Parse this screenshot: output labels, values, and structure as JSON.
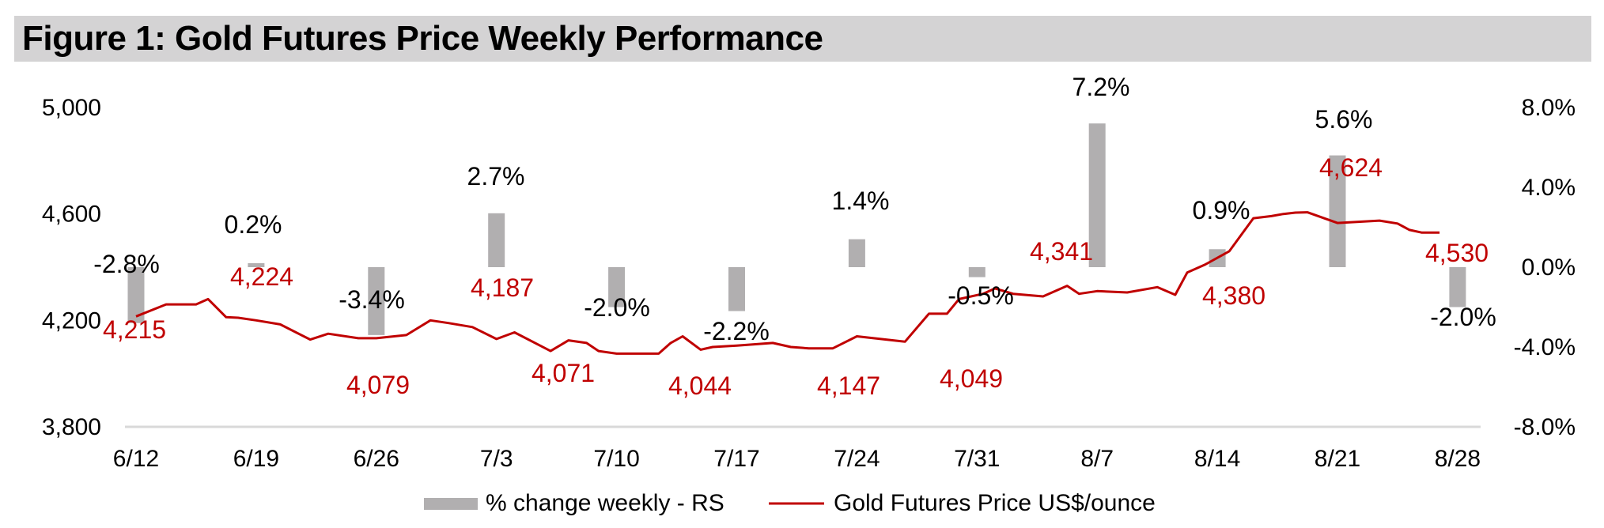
{
  "title": "Figure 1: Gold Futures Price Weekly Performance",
  "colors": {
    "bar": "#b1afb0",
    "line": "#c00000",
    "title_bg": "#d4d3d4"
  },
  "chart_data": {
    "type": "bar+line",
    "categories": [
      "6/12",
      "6/19",
      "6/26",
      "7/3",
      "7/10",
      "7/17",
      "7/24",
      "7/31",
      "8/7",
      "8/14",
      "8/21",
      "8/28"
    ],
    "left_axis": {
      "ylim": [
        3800,
        5000
      ],
      "ticks": [
        "3,800",
        "4,200",
        "4,600",
        "5,000"
      ],
      "tick_values": [
        3800,
        4200,
        4600,
        5000
      ]
    },
    "right_axis": {
      "ylim": [
        -8.0,
        8.0
      ],
      "ticks": [
        "-8.0%",
        "-4.0%",
        "0.0%",
        "4.0%",
        "8.0%"
      ],
      "tick_values": [
        -8,
        -4,
        0,
        4,
        8
      ]
    },
    "series": [
      {
        "name": "% change weekly - RS",
        "type": "bar",
        "axis": "right",
        "values": [
          -2.8,
          0.2,
          -3.4,
          2.7,
          -2.0,
          -2.2,
          1.4,
          -0.5,
          7.2,
          0.9,
          5.6,
          -2.0
        ],
        "labels": [
          "-2.8%",
          "0.2%",
          "-3.4%",
          "2.7%",
          "-2.0%",
          "-2.2%",
          "1.4%",
          "-0.5%",
          "7.2%",
          "0.9%",
          "5.6%",
          "-2.0%"
        ]
      },
      {
        "name": "Gold Futures Price US$/ounce",
        "type": "line",
        "axis": "left",
        "x": [
          0,
          0.25,
          0.5,
          0.6,
          0.75,
          0.85,
          1.0,
          1.2,
          1.45,
          1.6,
          1.85,
          2.0,
          2.25,
          2.45,
          2.6,
          2.8,
          3.0,
          3.15,
          3.45,
          3.6,
          3.75,
          3.85,
          4.0,
          4.2,
          4.35,
          4.45,
          4.55,
          4.7,
          4.8,
          5.0,
          5.3,
          5.45,
          5.6,
          5.8,
          6.0,
          6.2,
          6.4,
          6.6,
          6.75,
          6.85,
          7.05,
          7.15,
          7.3,
          7.55,
          7.75,
          7.85,
          8.0,
          8.25,
          8.5,
          8.65,
          8.75,
          8.9,
          9.1,
          9.3,
          9.45,
          9.55,
          9.65,
          9.75,
          9.9,
          10.0,
          10.35,
          10.5,
          10.6,
          10.7,
          10.85
        ],
        "values": [
          4215,
          4260,
          4260,
          4280,
          4212,
          4210,
          4200,
          4185,
          4128,
          4150,
          4133,
          4133,
          4145,
          4200,
          4190,
          4175,
          4130,
          4155,
          4085,
          4125,
          4115,
          4085,
          4075,
          4075,
          4075,
          4115,
          4140,
          4090,
          4100,
          4105,
          4115,
          4100,
          4095,
          4095,
          4140,
          4130,
          4120,
          4225,
          4225,
          4280,
          4300,
          4320,
          4300,
          4290,
          4330,
          4300,
          4310,
          4305,
          4325,
          4296,
          4380,
          4410,
          4460,
          4584,
          4592,
          4600,
          4605,
          4606,
          4582,
          4566,
          4575,
          4564,
          4540,
          4530,
          4530
        ],
        "labels": [
          "4,215",
          "4,224",
          "4,079",
          "4,187",
          "4,071",
          "4,044",
          "4,147",
          "4,049",
          "4,341",
          "4,380",
          "4,624",
          "4,530"
        ]
      }
    ],
    "legend_position": "bottom",
    "grid": false
  }
}
